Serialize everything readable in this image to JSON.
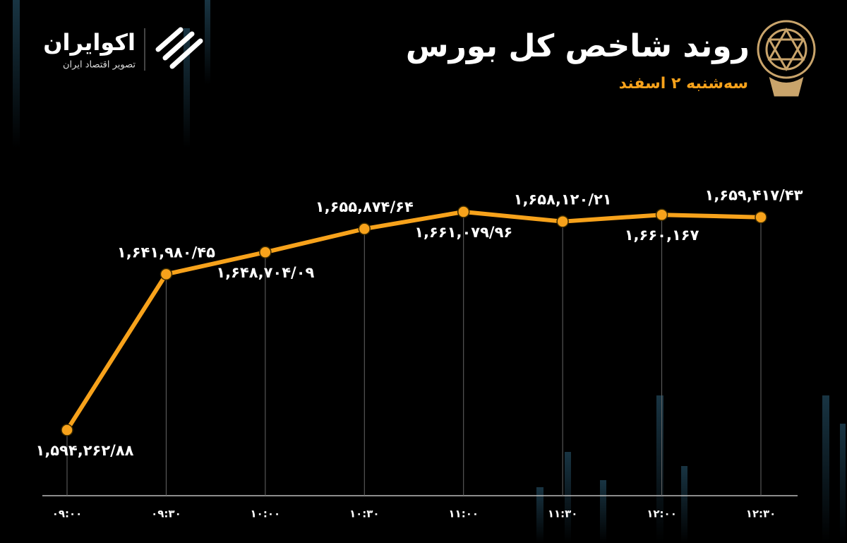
{
  "chart_data": {
    "type": "line",
    "title": "روند شاخص کل بورس",
    "subtitle": "سه‌شنبه ۲ اسفند",
    "logo": {
      "name": "اکوایران",
      "tagline": "تصویر اقتصاد ایران"
    },
    "categories": [
      "۰۹:۰۰",
      "۰۹:۳۰",
      "۱۰:۰۰",
      "۱۰:۳۰",
      "۱۱:۰۰",
      "۱۱:۳۰",
      "۱۲:۰۰",
      "۱۲:۳۰"
    ],
    "values": [
      1594262.88,
      1641980.45,
      1648704.09,
      1655874.64,
      1661079.96,
      1658120.21,
      1660167,
      1659417.43
    ],
    "value_labels": [
      "۱,۵۹۴,۲۶۲/۸۸",
      "۱,۶۴۱,۹۸۰/۴۵",
      "۱,۶۴۸,۷۰۴/۰۹",
      "۱,۶۵۵,۸۷۴/۶۴",
      "۱,۶۶۱,۰۷۹/۹۶",
      "۱,۶۵۸,۱۲۰/۲۱",
      "۱,۶۶۰,۱۶۷",
      "۱,۶۵۹,۴۱۷/۴۳"
    ],
    "color": "#f7a21b"
  }
}
